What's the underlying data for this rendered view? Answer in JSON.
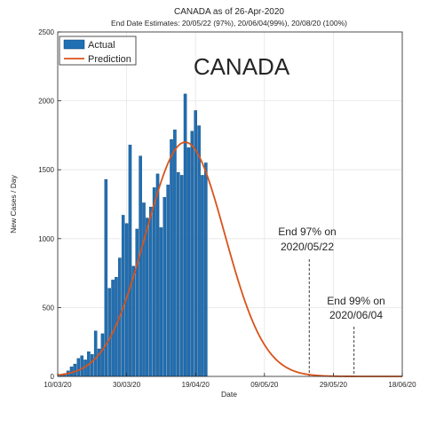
{
  "chart_data": {
    "type": "bar",
    "title": "CANADA as of 26-Apr-2020",
    "subtitle": "End Date Estimates: 20/05/22 (97%), 20/06/04(99%), 20/08/20 (100%)",
    "xlabel": "Date",
    "ylabel": "New Cases / Day",
    "ylim": [
      0,
      2500
    ],
    "yticks": [
      0,
      500,
      1000,
      1500,
      2000,
      2500
    ],
    "xlim": [
      0,
      100
    ],
    "xticks": [
      {
        "pos": 0,
        "label": "10/03/20"
      },
      {
        "pos": 20,
        "label": "30/03/20"
      },
      {
        "pos": 40,
        "label": "19/04/20"
      },
      {
        "pos": 60,
        "label": "09/05/20"
      },
      {
        "pos": 80,
        "label": "29/05/20"
      },
      {
        "pos": 100,
        "label": "18/06/20"
      }
    ],
    "grid": true,
    "legend_position": "top-left",
    "series": [
      {
        "name": "Actual",
        "kind": "bar",
        "color": "#1f6fb4",
        "x_start": 1,
        "values": [
          12,
          20,
          40,
          70,
          90,
          130,
          150,
          120,
          180,
          160,
          330,
          200,
          310,
          1430,
          640,
          700,
          720,
          860,
          1170,
          1110,
          1680,
          800,
          1070,
          1600,
          1260,
          1150,
          1230,
          1370,
          1470,
          1080,
          1300,
          1390,
          1720,
          1790,
          1480,
          1460,
          2050,
          1660,
          1780,
          1930,
          1820,
          1460,
          1550
        ]
      },
      {
        "name": "Prediction",
        "kind": "line",
        "color": "#d95319",
        "peak": 1700,
        "peak_x": 37,
        "spread": 11.5
      }
    ],
    "annotations": [
      {
        "id": "country",
        "text": "CANADA"
      },
      {
        "id": "end97_line1",
        "text": "End 97% on"
      },
      {
        "id": "end97_line2",
        "text": "2020/05/22"
      },
      {
        "id": "end99_line1",
        "text": "End 99% on"
      },
      {
        "id": "end99_line2",
        "text": "2020/06/04"
      }
    ],
    "markers": [
      {
        "x": 73,
        "label": "End 97%"
      },
      {
        "x": 86,
        "label": "End 99%"
      }
    ]
  }
}
